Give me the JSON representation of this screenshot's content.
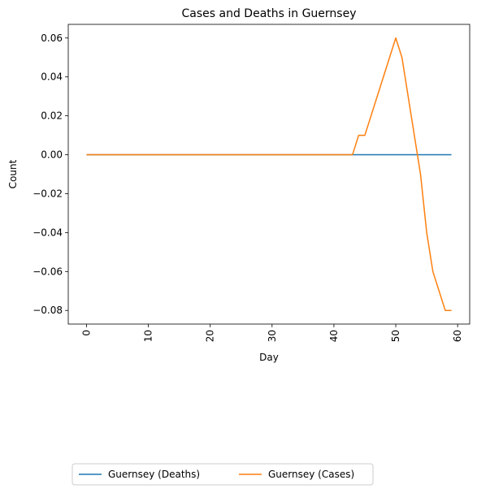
{
  "chart_data": {
    "type": "line",
    "title": "Cases and Deaths in Guernsey",
    "xlabel": "Day",
    "ylabel": "Count",
    "xlim": [
      -2.95,
      61.95
    ],
    "ylim": [
      -0.087,
      0.067
    ],
    "x_ticks": [
      0,
      10,
      20,
      30,
      40,
      50,
      60
    ],
    "y_ticks": [
      -0.08,
      -0.06,
      -0.04,
      -0.02,
      0.0,
      0.02,
      0.04,
      0.06
    ],
    "x_tick_labels": [
      "0",
      "10",
      "20",
      "30",
      "40",
      "50",
      "60"
    ],
    "y_tick_labels": [
      "−0.08",
      "−0.06",
      "−0.04",
      "−0.02",
      "0.00",
      "0.02",
      "0.04",
      "0.06"
    ],
    "x_tick_rotation": "vertical",
    "grid": false,
    "legend_placement": "bottom-left, below axes, 2 columns",
    "series": [
      {
        "name": "Guernsey (Deaths)",
        "color": "#1f77b4",
        "x": [
          0,
          59
        ],
        "y": [
          0,
          0
        ]
      },
      {
        "name": "Guernsey (Cases)",
        "color": "#ff7f0e",
        "x": [
          0,
          43,
          44,
          45,
          50,
          51,
          54,
          55,
          56,
          58,
          59
        ],
        "y": [
          0,
          0,
          0.01,
          0.01,
          0.06,
          0.05,
          -0.01,
          -0.04,
          -0.06,
          -0.08,
          -0.08
        ]
      }
    ]
  }
}
